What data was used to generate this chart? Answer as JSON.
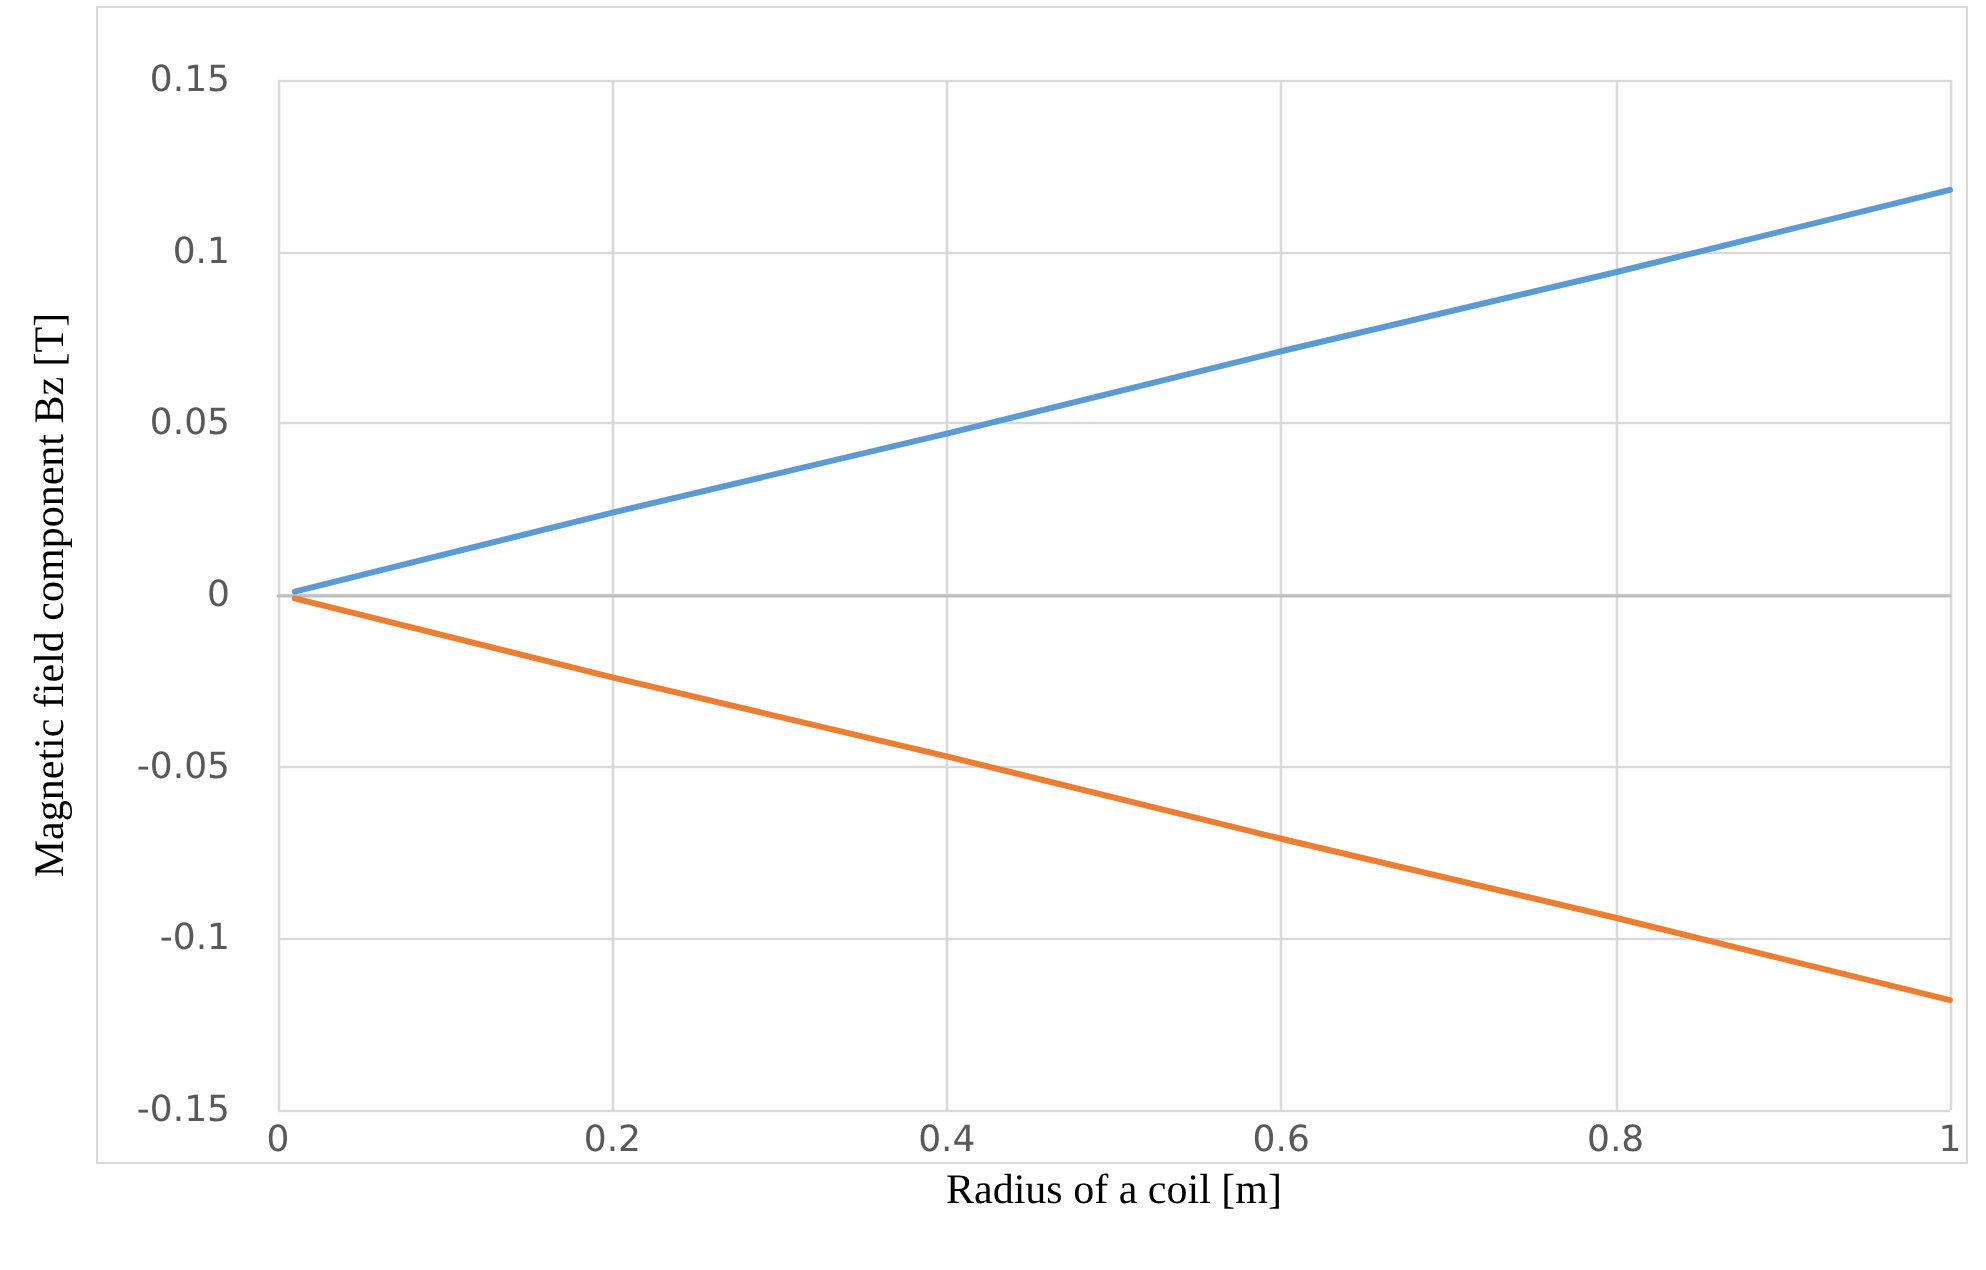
{
  "chart_data": {
    "type": "line",
    "xlabel": "Radius of a coil [m]",
    "ylabel": "Magnetic field component Bz [T]",
    "xlim": [
      0,
      1
    ],
    "xticks": [
      0,
      0.2,
      0.4,
      0.6,
      0.8,
      1
    ],
    "ylim": [
      -0.15,
      0.15
    ],
    "yticks": [
      -0.15,
      -0.1,
      -0.05,
      0,
      0.05,
      0.1,
      0.15
    ],
    "grid": true,
    "marker": "none",
    "line_style": "solid",
    "series": [
      {
        "color": "#5b9bd5",
        "x": [
          0.01,
          0.2,
          0.4,
          0.6,
          0.8,
          1
        ],
        "values": [
          0.001,
          0.024,
          0.047,
          0.071,
          0.094,
          0.118
        ]
      },
      {
        "color": "#ed7d31",
        "x": [
          0.01,
          0.2,
          0.4,
          0.6,
          0.8,
          1
        ],
        "values": [
          -0.001,
          -0.024,
          -0.047,
          -0.071,
          -0.094,
          -0.118
        ]
      }
    ]
  }
}
